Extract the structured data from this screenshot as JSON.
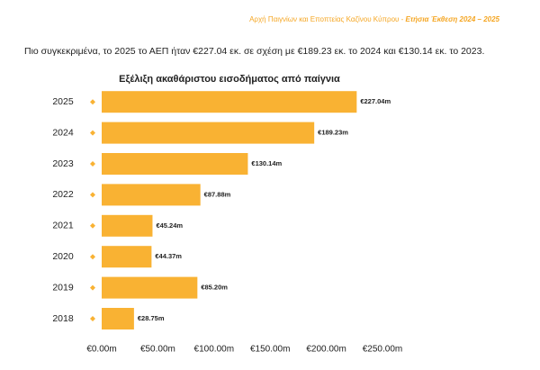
{
  "header": {
    "org": "Αρχή Παιγνίων και Εποπτείας Καζίνου Κύπρου -",
    "report": "Ετήσια Έκθεση 2024 – 2025"
  },
  "paragraph": "Πιο συγκεκριμένα, το 2025 το ΑΕΠ ήταν €227.04 εκ. σε σχέση με €189.23 εκ. το 2024 και €130.14 εκ. το 2023.",
  "chart_data": {
    "type": "barh",
    "title": "Εξέλιξη ακαθάριστου εισοδήματος από παίγνια",
    "categories": [
      "2025",
      "2024",
      "2023",
      "2022",
      "2021",
      "2020",
      "2019",
      "2018"
    ],
    "values": [
      227.04,
      189.23,
      130.14,
      87.88,
      45.24,
      44.37,
      85.2,
      28.75
    ],
    "value_labels": [
      "€227.04m",
      "€189.23m",
      "€130.14m",
      "€87.88m",
      "€45.24m",
      "€44.37m",
      "€85.20m",
      "€28.75m"
    ],
    "color": "#f9b233",
    "xlim": [
      0,
      250
    ],
    "xticks": [
      {
        "value": 0,
        "label": "€0.00m"
      },
      {
        "value": 50,
        "label": "€50.00m"
      },
      {
        "value": 100,
        "label": "€100.00m"
      },
      {
        "value": 150,
        "label": "€150.00m"
      },
      {
        "value": 200,
        "label": "€200.00m"
      },
      {
        "value": 250,
        "label": "€250.00m"
      }
    ],
    "grid": false
  }
}
